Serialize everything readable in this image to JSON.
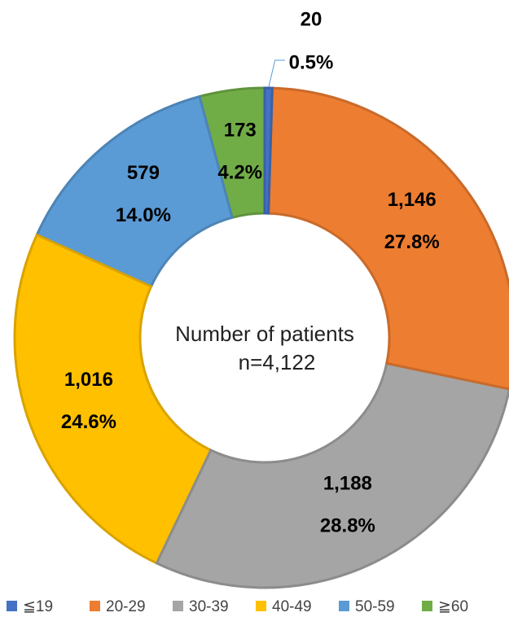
{
  "chart_data": {
    "type": "donut",
    "center_title": "Number of patients",
    "center_subtitle": "n=4,122",
    "categories": [
      "≦19",
      "20-29",
      "30-39",
      "40-49",
      "50-59",
      "≧60"
    ],
    "values": [
      20,
      1146,
      1188,
      1016,
      579,
      173
    ],
    "value_labels": [
      "20",
      "1,146",
      "1,188",
      "1,016",
      "579",
      "173"
    ],
    "percent_labels": [
      "0.5%",
      "27.8%",
      "28.8%",
      "24.6%",
      "14.0%",
      "4.2%"
    ],
    "colors": [
      "#4472c4",
      "#ed7d31",
      "#a5a5a5",
      "#ffc000",
      "#5b9bd5",
      "#70ad47"
    ],
    "legend": "bottom"
  }
}
